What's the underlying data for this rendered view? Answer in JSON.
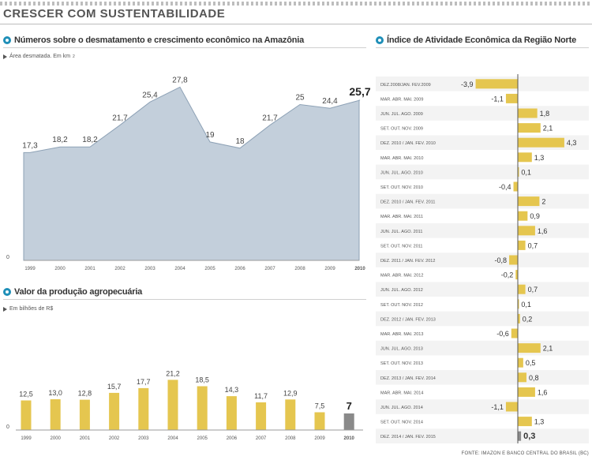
{
  "header": {
    "title": "CRESCER COM SUSTENTABILIDADE"
  },
  "colors": {
    "accent": "#1f8fb8",
    "area": "#c3cfdb",
    "bar": "#e5c64f",
    "bar_last": "#8a8a8a"
  },
  "deforestation": {
    "title": "Números sobre o desmatamento e crescimento econômico na Amazônia",
    "unit_label": "Área desmatada. Em km",
    "unit_sup": "2",
    "icon": "dot-icon"
  },
  "production": {
    "title": "Valor da produção agropecuária",
    "unit_label": "Em bilhões de R$",
    "icon": "dot-icon"
  },
  "activity": {
    "title": "Índice de Atividade Econômica da Região Norte",
    "icon": "dot-icon"
  },
  "source": "FONTE: IMAZON E BANCO CENTRAL DO BRASIL (BC)",
  "chart_data": [
    {
      "type": "area",
      "title": "Números sobre o desmatamento e crescimento econômico na Amazônia",
      "ylabel": "Área desmatada. Em km²",
      "zero_label": "0",
      "ylim": [
        0,
        30
      ],
      "categories": [
        "1999",
        "2000",
        "2001",
        "2002",
        "2003",
        "2004",
        "2005",
        "2006",
        "2007",
        "2008",
        "2009",
        "2010"
      ],
      "values": [
        17.3,
        18.2,
        18.2,
        21.7,
        25.4,
        27.8,
        19,
        18,
        21.7,
        25,
        24.4,
        25.7
      ],
      "labels": [
        "17,3",
        "18,2",
        "18,2",
        "21,7",
        "25,4",
        "27,8",
        "19",
        "18",
        "21,7",
        "25",
        "24,4",
        "25,7"
      ]
    },
    {
      "type": "bar",
      "title": "Valor da produção agropecuária",
      "ylabel": "Em bilhões de R$",
      "zero_label": "0",
      "ylim": [
        0,
        25
      ],
      "categories": [
        "1999",
        "2000",
        "2001",
        "2002",
        "2003",
        "2004",
        "2005",
        "2006",
        "2007",
        "2008",
        "2009",
        "2010"
      ],
      "values": [
        12.5,
        13.0,
        12.8,
        15.7,
        17.7,
        21.2,
        18.5,
        14.3,
        11.7,
        12.9,
        7.5,
        7
      ],
      "labels": [
        "12,5",
        "13,0",
        "12,8",
        "15,7",
        "17,7",
        "21,2",
        "18,5",
        "14,3",
        "11,7",
        "12,9",
        "7,5",
        "7"
      ]
    },
    {
      "type": "bar",
      "orientation": "horizontal",
      "title": "Índice de Atividade Econômica da Região Norte",
      "categories": [
        "DEZ.2008/JAN. FEV.2009",
        "MAR. ABR. MAI. 2009",
        "JUN. JUL. AGO. 2009",
        "SET. OUT. NOV. 2009",
        "DEZ. 2010 / JAN. FEV. 2010",
        "MAR. ABR. MAI. 2010",
        "JUN. JUL. AGO. 2010",
        "SET. OUT. NOV. 2010",
        "DEZ. 2010 / JAN. FEV. 2011",
        "MAR. ABR. MAI. 2011",
        "JUN. JUL. AGO. 2011",
        "SET. OUT. NOV. 2011",
        "DEZ. 2011 / JAN. FEV. 2012",
        "MAR. ABR. MAI. 2012",
        "JUN. JUL. AGO. 2012",
        "SET. OUT. NOV. 2012",
        "DEZ. 2012 / JAN. FEV. 2013",
        "MAR. ABR. MAI. 2013",
        "JUN. JUL. AGO. 2013",
        "SET. OUT. NOV. 2013",
        "DEZ. 2013 / JAN. FEV. 2014",
        "MAR. ABR. MAI. 2014",
        "JUN. JUL. AGO. 2014",
        "SET. OUT. NOV. 2014",
        "DEZ. 2014 / JAN. FEV. 2015"
      ],
      "values": [
        -3.9,
        -1.1,
        1.8,
        2.1,
        4.3,
        1.3,
        0.1,
        -0.4,
        2,
        0.9,
        1.6,
        0.7,
        -0.8,
        -0.2,
        0.7,
        0.1,
        0.2,
        -0.6,
        2.1,
        0.5,
        0.8,
        1.6,
        -1.1,
        1.3,
        0.3
      ],
      "labels": [
        "-3,9",
        "-1,1",
        "1,8",
        "2,1",
        "4,3",
        "1,3",
        "0,1",
        "-0,4",
        "2",
        "0,9",
        "1,6",
        "0,7",
        "-0,8",
        "-0,2",
        "0,7",
        "0,1",
        "0,2",
        "-0,6",
        "2,1",
        "0,5",
        "0,8",
        "1,6",
        "-1,1",
        "1,3",
        "0,3"
      ],
      "xlim": [
        -4.5,
        4.5
      ]
    }
  ]
}
